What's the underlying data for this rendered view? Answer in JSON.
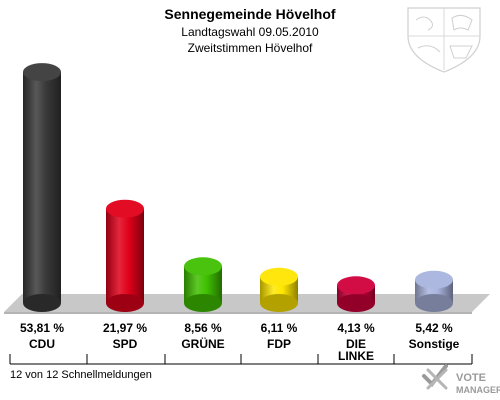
{
  "header": {
    "title": "Sennegemeinde Hövelhof",
    "subtitle1": "Landtagswahl 09.05.2010",
    "subtitle2": "Zweitstimmen Hövelhof"
  },
  "footer": {
    "status": "12 von 12 Schnellmeldungen",
    "logo_line1": "VOTE",
    "logo_line2": "MANAGER"
  },
  "chart_data": {
    "type": "bar",
    "title": "Sennegemeinde Hövelhof",
    "subtitle": "Landtagswahl 09.05.2010 — Zweitstimmen Hövelhof",
    "xlabel": "",
    "ylabel": "",
    "ylim": [
      0,
      55
    ],
    "categories": [
      "CDU",
      "SPD",
      "GRÜNE",
      "FDP",
      "DIE LINKE",
      "Sonstige"
    ],
    "values": [
      53.81,
      21.97,
      8.56,
      6.11,
      4.13,
      5.42
    ],
    "value_labels": [
      "53,81 %",
      "21,97 %",
      "8,56 %",
      "6,11 %",
      "4,13 %",
      "5,42 %"
    ],
    "colors": [
      "#3a3a3a",
      "#e0001a",
      "#3fc000",
      "#ffe600",
      "#d0003c",
      "#a9b4de"
    ],
    "grid": false,
    "legend": "none"
  }
}
